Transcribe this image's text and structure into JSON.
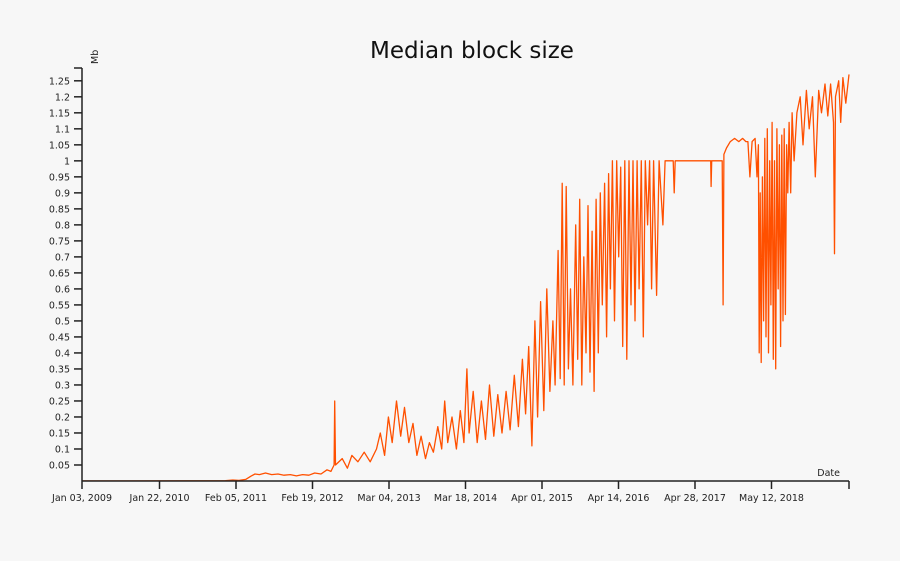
{
  "chart_data": {
    "type": "line",
    "title": "Median block size",
    "xlabel": "Date",
    "ylabel": "Mb",
    "xlim": [
      "2009-01-03",
      "2019-05-31"
    ],
    "ylim": [
      0,
      1.29
    ],
    "grid": false,
    "line_color": "#ff5000",
    "x_ticks": [
      {
        "date": "2009-01-03",
        "label": "Jan 03, 2009"
      },
      {
        "date": "2010-01-22",
        "label": "Jan 22, 2010"
      },
      {
        "date": "2011-02-05",
        "label": "Feb 05, 2011"
      },
      {
        "date": "2012-02-19",
        "label": "Feb 19, 2012"
      },
      {
        "date": "2013-03-04",
        "label": "Mar 04, 2013"
      },
      {
        "date": "2014-03-18",
        "label": "Mar 18, 2014"
      },
      {
        "date": "2015-04-01",
        "label": "Apr 01, 2015"
      },
      {
        "date": "2016-04-14",
        "label": "Apr 14, 2016"
      },
      {
        "date": "2017-04-28",
        "label": "Apr 28, 2017"
      },
      {
        "date": "2018-05-12",
        "label": "May 12, 2018"
      },
      {
        "date": "2019-05-31",
        "label": ""
      }
    ],
    "y_ticks": [
      {
        "value": 0.05,
        "label": "0.05"
      },
      {
        "value": 0.1,
        "label": "0.1"
      },
      {
        "value": 0.15,
        "label": "0.15"
      },
      {
        "value": 0.2,
        "label": "0.2"
      },
      {
        "value": 0.25,
        "label": "0.25"
      },
      {
        "value": 0.3,
        "label": "0.3"
      },
      {
        "value": 0.35,
        "label": "0.35"
      },
      {
        "value": 0.4,
        "label": "0.4"
      },
      {
        "value": 0.45,
        "label": "0.45"
      },
      {
        "value": 0.5,
        "label": "0.5"
      },
      {
        "value": 0.55,
        "label": "0.55"
      },
      {
        "value": 0.6,
        "label": "0.6"
      },
      {
        "value": 0.65,
        "label": "0.65"
      },
      {
        "value": 0.7,
        "label": "0.7"
      },
      {
        "value": 0.75,
        "label": "0.75"
      },
      {
        "value": 0.8,
        "label": "0.8"
      },
      {
        "value": 0.85,
        "label": "0.85"
      },
      {
        "value": 0.9,
        "label": "0.9"
      },
      {
        "value": 0.95,
        "label": "0.95"
      },
      {
        "value": 1,
        "label": "1"
      },
      {
        "value": 1.05,
        "label": "1.05"
      },
      {
        "value": 1.1,
        "label": "1.1"
      },
      {
        "value": 1.15,
        "label": "1.15"
      },
      {
        "value": 1.2,
        "label": "1.2"
      },
      {
        "value": 1.25,
        "label": "1.25"
      }
    ],
    "series": [
      {
        "points": [
          [
            "2009-01-03",
            0.0002
          ],
          [
            "2010-06-01",
            0.0005
          ],
          [
            "2010-12-15",
            0.001
          ],
          [
            "2011-01-20",
            0.003
          ],
          [
            "2011-02-20",
            0.002
          ],
          [
            "2011-03-25",
            0.005
          ],
          [
            "2011-04-20",
            0.015
          ],
          [
            "2011-05-10",
            0.022
          ],
          [
            "2011-06-01",
            0.02
          ],
          [
            "2011-07-01",
            0.025
          ],
          [
            "2011-08-01",
            0.02
          ],
          [
            "2011-09-01",
            0.022
          ],
          [
            "2011-10-01",
            0.018
          ],
          [
            "2011-11-01",
            0.02
          ],
          [
            "2011-12-01",
            0.016
          ],
          [
            "2012-01-01",
            0.02
          ],
          [
            "2012-02-01",
            0.018
          ],
          [
            "2012-03-01",
            0.025
          ],
          [
            "2012-04-01",
            0.022
          ],
          [
            "2012-05-01",
            0.035
          ],
          [
            "2012-05-20",
            0.03
          ],
          [
            "2012-06-05",
            0.05
          ],
          [
            "2012-06-08",
            0.25
          ],
          [
            "2012-06-12",
            0.05
          ],
          [
            "2012-07-15",
            0.07
          ],
          [
            "2012-08-10",
            0.04
          ],
          [
            "2012-09-01",
            0.08
          ],
          [
            "2012-10-01",
            0.06
          ],
          [
            "2012-11-01",
            0.09
          ],
          [
            "2012-12-01",
            0.06
          ],
          [
            "2013-01-01",
            0.1
          ],
          [
            "2013-01-20",
            0.15
          ],
          [
            "2013-02-10",
            0.08
          ],
          [
            "2013-03-01",
            0.2
          ],
          [
            "2013-03-20",
            0.12
          ],
          [
            "2013-04-10",
            0.25
          ],
          [
            "2013-05-01",
            0.14
          ],
          [
            "2013-05-20",
            0.23
          ],
          [
            "2013-06-10",
            0.12
          ],
          [
            "2013-07-01",
            0.18
          ],
          [
            "2013-07-20",
            0.08
          ],
          [
            "2013-08-10",
            0.14
          ],
          [
            "2013-09-01",
            0.07
          ],
          [
            "2013-09-20",
            0.12
          ],
          [
            "2013-10-10",
            0.09
          ],
          [
            "2013-11-01",
            0.17
          ],
          [
            "2013-11-20",
            0.1
          ],
          [
            "2013-12-05",
            0.25
          ],
          [
            "2013-12-20",
            0.12
          ],
          [
            "2014-01-10",
            0.2
          ],
          [
            "2014-02-01",
            0.1
          ],
          [
            "2014-02-20",
            0.22
          ],
          [
            "2014-03-10",
            0.12
          ],
          [
            "2014-03-25",
            0.35
          ],
          [
            "2014-04-05",
            0.15
          ],
          [
            "2014-04-25",
            0.28
          ],
          [
            "2014-05-15",
            0.12
          ],
          [
            "2014-06-05",
            0.25
          ],
          [
            "2014-06-25",
            0.13
          ],
          [
            "2014-07-15",
            0.3
          ],
          [
            "2014-08-05",
            0.14
          ],
          [
            "2014-08-25",
            0.27
          ],
          [
            "2014-09-15",
            0.15
          ],
          [
            "2014-10-05",
            0.28
          ],
          [
            "2014-10-25",
            0.16
          ],
          [
            "2014-11-15",
            0.33
          ],
          [
            "2014-12-05",
            0.17
          ],
          [
            "2014-12-25",
            0.38
          ],
          [
            "2015-01-10",
            0.21
          ],
          [
            "2015-01-25",
            0.42
          ],
          [
            "2015-02-10",
            0.11
          ],
          [
            "2015-02-25",
            0.5
          ],
          [
            "2015-03-10",
            0.2
          ],
          [
            "2015-03-25",
            0.56
          ],
          [
            "2015-04-10",
            0.22
          ],
          [
            "2015-04-25",
            0.6
          ],
          [
            "2015-05-10",
            0.28
          ],
          [
            "2015-05-25",
            0.5
          ],
          [
            "2015-06-05",
            0.3
          ],
          [
            "2015-06-20",
            0.72
          ],
          [
            "2015-06-30",
            0.32
          ],
          [
            "2015-07-10",
            0.93
          ],
          [
            "2015-07-20",
            0.3
          ],
          [
            "2015-07-30",
            0.92
          ],
          [
            "2015-08-10",
            0.35
          ],
          [
            "2015-08-20",
            0.6
          ],
          [
            "2015-09-01",
            0.3
          ],
          [
            "2015-09-15",
            0.8
          ],
          [
            "2015-09-25",
            0.38
          ],
          [
            "2015-10-05",
            0.88
          ],
          [
            "2015-10-15",
            0.3
          ],
          [
            "2015-10-25",
            0.7
          ],
          [
            "2015-11-05",
            0.4
          ],
          [
            "2015-11-15",
            0.86
          ],
          [
            "2015-11-25",
            0.34
          ],
          [
            "2015-12-05",
            0.78
          ],
          [
            "2015-12-15",
            0.28
          ],
          [
            "2015-12-25",
            0.88
          ],
          [
            "2016-01-05",
            0.4
          ],
          [
            "2016-01-15",
            0.9
          ],
          [
            "2016-01-25",
            0.55
          ],
          [
            "2016-02-05",
            0.93
          ],
          [
            "2016-02-15",
            0.45
          ],
          [
            "2016-02-25",
            0.96
          ],
          [
            "2016-03-05",
            0.6
          ],
          [
            "2016-03-15",
            1.0
          ],
          [
            "2016-03-25",
            0.5
          ],
          [
            "2016-04-05",
            1.0
          ],
          [
            "2016-04-15",
            0.7
          ],
          [
            "2016-04-25",
            0.98
          ],
          [
            "2016-05-05",
            0.42
          ],
          [
            "2016-05-15",
            1.0
          ],
          [
            "2016-05-25",
            0.38
          ],
          [
            "2016-06-05",
            1.0
          ],
          [
            "2016-06-15",
            0.55
          ],
          [
            "2016-06-25",
            1.0
          ],
          [
            "2016-07-05",
            0.5
          ],
          [
            "2016-07-15",
            1.0
          ],
          [
            "2016-07-25",
            0.6
          ],
          [
            "2016-08-05",
            1.0
          ],
          [
            "2016-08-15",
            0.45
          ],
          [
            "2016-08-25",
            1.0
          ],
          [
            "2016-09-05",
            0.8
          ],
          [
            "2016-09-15",
            1.0
          ],
          [
            "2016-09-25",
            0.6
          ],
          [
            "2016-10-05",
            1.0
          ],
          [
            "2016-10-20",
            0.58
          ],
          [
            "2016-11-01",
            1.0
          ],
          [
            "2016-11-20",
            0.8
          ],
          [
            "2016-12-01",
            1.0
          ],
          [
            "2017-01-10",
            1.0
          ],
          [
            "2017-01-15",
            0.9
          ],
          [
            "2017-01-20",
            1.0
          ],
          [
            "2017-07-15",
            1.0
          ],
          [
            "2017-07-17",
            0.92
          ],
          [
            "2017-07-20",
            1.0
          ],
          [
            "2017-09-10",
            1.0
          ],
          [
            "2017-09-14",
            0.55
          ],
          [
            "2017-09-18",
            1.02
          ],
          [
            "2017-10-01",
            1.04
          ],
          [
            "2017-10-20",
            1.06
          ],
          [
            "2017-11-10",
            1.07
          ],
          [
            "2017-12-01",
            1.06
          ],
          [
            "2017-12-20",
            1.07
          ],
          [
            "2018-01-05",
            1.06
          ],
          [
            "2018-01-15",
            1.06
          ],
          [
            "2018-01-25",
            0.95
          ],
          [
            "2018-02-05",
            1.06
          ],
          [
            "2018-02-20",
            1.07
          ],
          [
            "2018-03-01",
            0.95
          ],
          [
            "2018-03-08",
            1.05
          ],
          [
            "2018-03-12",
            0.4
          ],
          [
            "2018-03-17",
            0.9
          ],
          [
            "2018-03-22",
            0.37
          ],
          [
            "2018-03-28",
            0.95
          ],
          [
            "2018-04-03",
            0.5
          ],
          [
            "2018-04-09",
            1.07
          ],
          [
            "2018-04-15",
            0.45
          ],
          [
            "2018-04-21",
            1.1
          ],
          [
            "2018-04-27",
            0.4
          ],
          [
            "2018-05-03",
            1.0
          ],
          [
            "2018-05-09",
            0.55
          ],
          [
            "2018-05-15",
            1.12
          ],
          [
            "2018-05-21",
            0.38
          ],
          [
            "2018-05-27",
            1.0
          ],
          [
            "2018-06-02",
            0.35
          ],
          [
            "2018-06-08",
            1.1
          ],
          [
            "2018-06-14",
            0.6
          ],
          [
            "2018-06-20",
            1.05
          ],
          [
            "2018-06-26",
            0.42
          ],
          [
            "2018-07-02",
            1.08
          ],
          [
            "2018-07-08",
            0.5
          ],
          [
            "2018-07-14",
            1.1
          ],
          [
            "2018-07-20",
            0.52
          ],
          [
            "2018-07-26",
            1.05
          ],
          [
            "2018-08-01",
            0.9
          ],
          [
            "2018-08-07",
            1.12
          ],
          [
            "2018-08-15",
            0.9
          ],
          [
            "2018-08-22",
            1.15
          ],
          [
            "2018-09-01",
            1.0
          ],
          [
            "2018-09-15",
            1.15
          ],
          [
            "2018-10-01",
            1.2
          ],
          [
            "2018-10-15",
            1.05
          ],
          [
            "2018-11-01",
            1.22
          ],
          [
            "2018-11-15",
            1.1
          ],
          [
            "2018-12-01",
            1.2
          ],
          [
            "2018-12-15",
            0.95
          ],
          [
            "2019-01-01",
            1.22
          ],
          [
            "2019-01-15",
            1.15
          ],
          [
            "2019-02-01",
            1.24
          ],
          [
            "2019-02-15",
            1.14
          ],
          [
            "2019-03-01",
            1.24
          ],
          [
            "2019-03-15",
            1.12
          ],
          [
            "2019-03-20",
            0.71
          ],
          [
            "2019-03-25",
            1.2
          ],
          [
            "2019-04-10",
            1.25
          ],
          [
            "2019-04-20",
            1.12
          ],
          [
            "2019-05-01",
            1.26
          ],
          [
            "2019-05-15",
            1.18
          ],
          [
            "2019-05-31",
            1.27
          ]
        ]
      }
    ]
  }
}
